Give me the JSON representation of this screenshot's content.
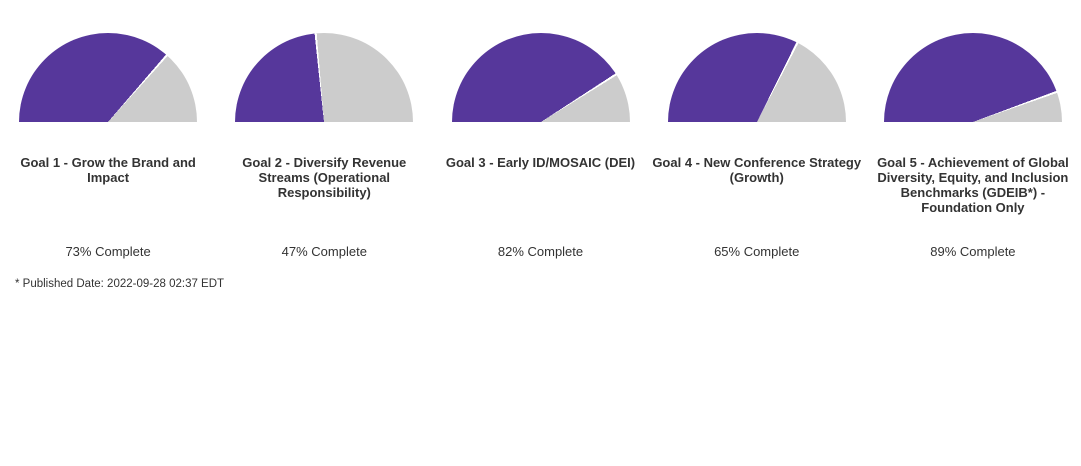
{
  "page": {
    "background_color": "#ffffff",
    "text_color": "#333333"
  },
  "footnote": "* Published Date: 2022-09-28 02:37 EDT",
  "chart_data": [
    {
      "type": "pie",
      "subtype": "half-pie-gauge",
      "title": "Goal 1 - Grow the Brand and Impact",
      "percent_complete": 73,
      "label": "73% Complete",
      "legend": "off",
      "series": [
        {
          "name": "Complete",
          "value": 73,
          "color": "#56379b"
        },
        {
          "name": "Remaining",
          "value": 27,
          "color": "#cccccc"
        }
      ]
    },
    {
      "type": "pie",
      "subtype": "half-pie-gauge",
      "title": "Goal 2 - Diversify Revenue Streams (Operational Responsibility)",
      "percent_complete": 47,
      "label": "47% Complete",
      "legend": "off",
      "series": [
        {
          "name": "Complete",
          "value": 47,
          "color": "#56379b"
        },
        {
          "name": "Remaining",
          "value": 53,
          "color": "#cccccc"
        }
      ]
    },
    {
      "type": "pie",
      "subtype": "half-pie-gauge",
      "title": "Goal 3 - Early ID/MOSAIC (DEI)",
      "percent_complete": 82,
      "label": "82% Complete",
      "legend": "off",
      "series": [
        {
          "name": "Complete",
          "value": 82,
          "color": "#56379b"
        },
        {
          "name": "Remaining",
          "value": 18,
          "color": "#cccccc"
        }
      ]
    },
    {
      "type": "pie",
      "subtype": "half-pie-gauge",
      "title": "Goal 4 - New Conference Strategy (Growth)",
      "percent_complete": 65,
      "label": "65% Complete",
      "legend": "off",
      "series": [
        {
          "name": "Complete",
          "value": 65,
          "color": "#56379b"
        },
        {
          "name": "Remaining",
          "value": 35,
          "color": "#cccccc"
        }
      ]
    },
    {
      "type": "pie",
      "subtype": "half-pie-gauge",
      "title": "Goal 5 - Achievement of Global Diversity, Equity, and Inclusion Benchmarks (GDEIB*) - Foundation Only",
      "percent_complete": 89,
      "label": "89% Complete",
      "legend": "off",
      "series": [
        {
          "name": "Complete",
          "value": 89,
          "color": "#56379b"
        },
        {
          "name": "Remaining",
          "value": 11,
          "color": "#cccccc"
        }
      ]
    }
  ]
}
